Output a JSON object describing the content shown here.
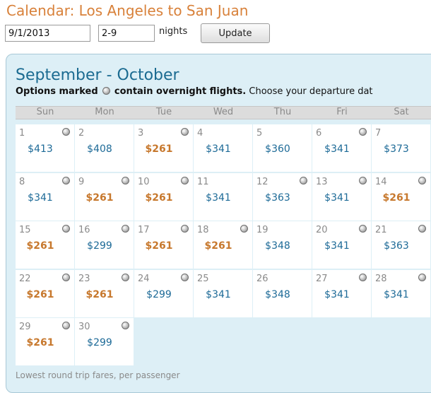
{
  "title": "Calendar: Los Angeles to San Juan",
  "search": {
    "date_value": "9/1/2013",
    "nights_value": "2-9",
    "nights_label": "nights",
    "update_label": "Update"
  },
  "calendar": {
    "month_title": "September - October",
    "legend_bold_1": "Options marked",
    "legend_bold_2": "contain overnight flights.",
    "legend_tail": "Choose your departure dat",
    "weekdays": [
      "Sun",
      "Mon",
      "Tue",
      "Wed",
      "Thu",
      "Fri",
      "Sat"
    ],
    "weeks": [
      [
        {
          "day": "1",
          "price": "$413",
          "low": false,
          "overnight": true
        },
        {
          "day": "2",
          "price": "$408",
          "low": false,
          "overnight": false
        },
        {
          "day": "3",
          "price": "$261",
          "low": true,
          "overnight": true
        },
        {
          "day": "4",
          "price": "$341",
          "low": false,
          "overnight": false
        },
        {
          "day": "5",
          "price": "$360",
          "low": false,
          "overnight": false
        },
        {
          "day": "6",
          "price": "$341",
          "low": false,
          "overnight": true
        },
        {
          "day": "7",
          "price": "$373",
          "low": false,
          "overnight": false
        }
      ],
      [
        {
          "day": "8",
          "price": "$341",
          "low": false,
          "overnight": true
        },
        {
          "day": "9",
          "price": "$261",
          "low": true,
          "overnight": true
        },
        {
          "day": "10",
          "price": "$261",
          "low": true,
          "overnight": true
        },
        {
          "day": "11",
          "price": "$341",
          "low": false,
          "overnight": false
        },
        {
          "day": "12",
          "price": "$363",
          "low": false,
          "overnight": true
        },
        {
          "day": "13",
          "price": "$341",
          "low": false,
          "overnight": true
        },
        {
          "day": "14",
          "price": "$261",
          "low": true,
          "overnight": true
        }
      ],
      [
        {
          "day": "15",
          "price": "$261",
          "low": true,
          "overnight": true
        },
        {
          "day": "16",
          "price": "$299",
          "low": false,
          "overnight": true
        },
        {
          "day": "17",
          "price": "$261",
          "low": true,
          "overnight": true
        },
        {
          "day": "18",
          "price": "$261",
          "low": true,
          "overnight": true
        },
        {
          "day": "19",
          "price": "$348",
          "low": false,
          "overnight": false
        },
        {
          "day": "20",
          "price": "$341",
          "low": false,
          "overnight": true
        },
        {
          "day": "21",
          "price": "$363",
          "low": false,
          "overnight": true
        }
      ],
      [
        {
          "day": "22",
          "price": "$261",
          "low": true,
          "overnight": true
        },
        {
          "day": "23",
          "price": "$261",
          "low": true,
          "overnight": true
        },
        {
          "day": "24",
          "price": "$299",
          "low": false,
          "overnight": true
        },
        {
          "day": "25",
          "price": "$341",
          "low": false,
          "overnight": false
        },
        {
          "day": "26",
          "price": "$348",
          "low": false,
          "overnight": false
        },
        {
          "day": "27",
          "price": "$341",
          "low": false,
          "overnight": true
        },
        {
          "day": "28",
          "price": "$341",
          "low": false,
          "overnight": true
        }
      ],
      [
        {
          "day": "29",
          "price": "$261",
          "low": true,
          "overnight": true
        },
        {
          "day": "30",
          "price": "$299",
          "low": false,
          "overnight": true
        },
        null,
        null,
        null,
        null,
        null
      ]
    ],
    "footer": "Lowest round trip fares, per passenger"
  },
  "colors": {
    "title": "#d8813a",
    "month": "#1b6b91",
    "price": "#1d6a97",
    "low_price": "#c7782d",
    "panel_bg": "#ddeff6"
  },
  "icons": {
    "overnight": "overnight-flight-icon"
  }
}
